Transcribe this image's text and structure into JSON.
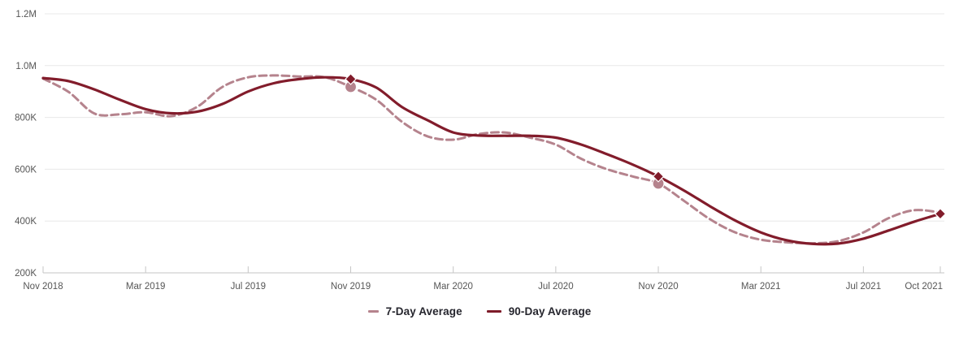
{
  "chart_data": {
    "type": "line",
    "title": "",
    "xlabel": "",
    "ylabel": "",
    "x": [
      "Nov 2018",
      "Dec 2018",
      "Jan 2019",
      "Feb 2019",
      "Mar 2019",
      "Apr 2019",
      "May 2019",
      "Jun 2019",
      "Jul 2019",
      "Aug 2019",
      "Sep 2019",
      "Oct 2019",
      "Nov 2019",
      "Dec 2019",
      "Jan 2020",
      "Feb 2020",
      "Mar 2020",
      "Apr 2020",
      "May 2020",
      "Jun 2020",
      "Jul 2020",
      "Aug 2020",
      "Sep 2020",
      "Oct 2020",
      "Nov 2020",
      "Dec 2020",
      "Jan 2021",
      "Feb 2021",
      "Mar 2021",
      "Apr 2021",
      "May 2021",
      "Jun 2021",
      "Jul 2021",
      "Aug 2021",
      "Sep 2021",
      "Oct 2021"
    ],
    "series": [
      {
        "name": "7-Day Average",
        "color": "#b5838d",
        "style": "dashed",
        "stroke_width": 3,
        "marker_shape": "circle",
        "marker_indices": [
          12,
          24
        ],
        "values": [
          950000,
          898000,
          815000,
          812000,
          820000,
          805000,
          840000,
          918000,
          955000,
          962000,
          958000,
          955000,
          918000,
          868000,
          783000,
          727000,
          714000,
          736000,
          742000,
          722000,
          695000,
          640000,
          600000,
          572000,
          545000,
          478000,
          408000,
          356000,
          328000,
          318000,
          314000,
          322000,
          356000,
          412000,
          442000,
          433000
        ]
      },
      {
        "name": "90-Day Average",
        "color": "#821c2b",
        "style": "solid",
        "stroke_width": 3.2,
        "marker_shape": "diamond",
        "marker_indices": [
          12,
          24,
          35
        ],
        "values": [
          952000,
          940000,
          908000,
          868000,
          832000,
          816000,
          822000,
          852000,
          900000,
          932000,
          948000,
          955000,
          948000,
          915000,
          840000,
          789000,
          742000,
          730000,
          729000,
          729000,
          722000,
          695000,
          658000,
          618000,
          572000,
          518000,
          458000,
          402000,
          356000,
          326000,
          312000,
          313000,
          332000,
          364000,
          398000,
          428000
        ]
      }
    ],
    "ylim": [
      200000,
      1200000
    ],
    "y_ticks": [
      {
        "value": 1200000,
        "label": "1.2M"
      },
      {
        "value": 1000000,
        "label": "1.0M"
      },
      {
        "value": 800000,
        "label": "800K"
      },
      {
        "value": 600000,
        "label": "600K"
      },
      {
        "value": 400000,
        "label": "400K"
      },
      {
        "value": 200000,
        "label": "200K"
      }
    ],
    "x_ticks": [
      {
        "index": 0,
        "label": "Nov 2018"
      },
      {
        "index": 4,
        "label": "Mar 2019"
      },
      {
        "index": 8,
        "label": "Jul 2019"
      },
      {
        "index": 12,
        "label": "Nov 2019"
      },
      {
        "index": 16,
        "label": "Mar 2020"
      },
      {
        "index": 20,
        "label": "Jul 2020"
      },
      {
        "index": 24,
        "label": "Nov 2020"
      },
      {
        "index": 28,
        "label": "Mar 2021"
      },
      {
        "index": 32,
        "label": "Jul 2021"
      },
      {
        "index": 35,
        "label": "Oct 2021"
      }
    ],
    "grid": true,
    "legend_position": "bottom-center",
    "colors": {
      "gridline": "#e8e8e8",
      "axis_line": "#c6c6c6",
      "tick_label": "#565656",
      "marker_outline": "#ffffff"
    }
  },
  "legend": {
    "items": [
      {
        "label": "7-Day Average",
        "color": "#b5838d",
        "style": "dashed"
      },
      {
        "label": "90-Day Average",
        "color": "#7d1b29",
        "style": "solid"
      }
    ]
  }
}
